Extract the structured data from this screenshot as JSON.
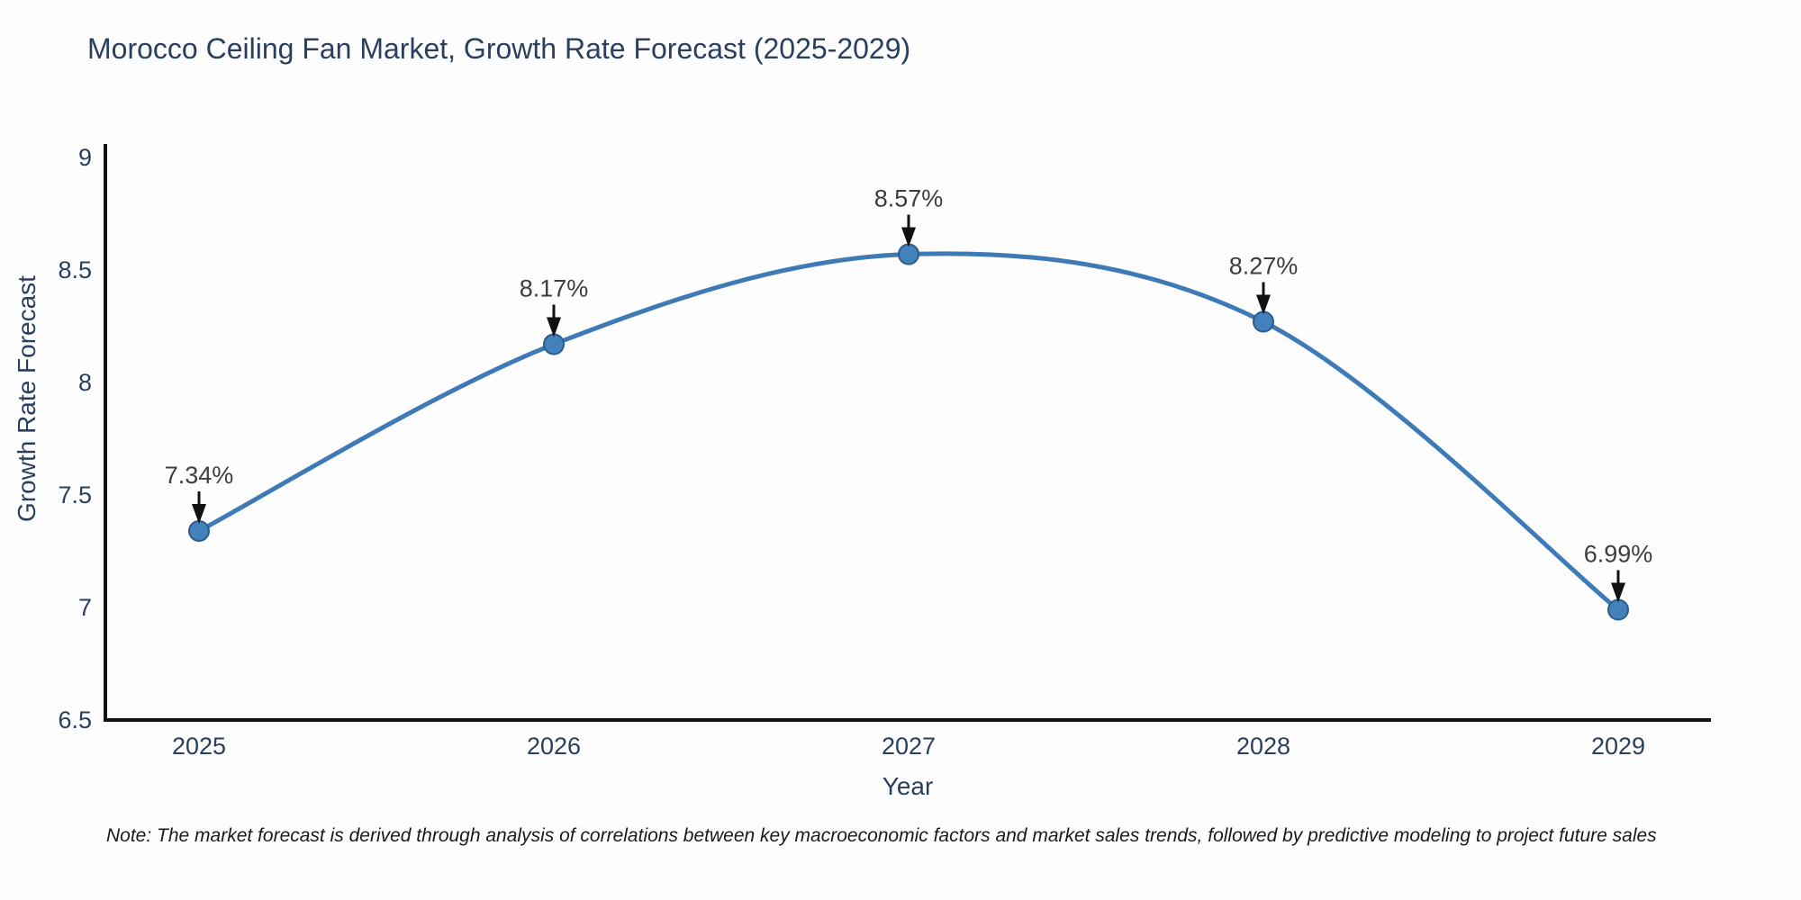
{
  "title": "Morocco Ceiling Fan Market, Growth Rate Forecast (2025-2029)",
  "note": "Note: The market forecast is derived through analysis of correlations between key macroeconomic factors and market sales trends, followed by predictive modeling to project future sales",
  "chart_data": {
    "type": "line",
    "title": "Morocco Ceiling Fan Market, Growth Rate Forecast (2025-2029)",
    "xlabel": "Year",
    "ylabel": "Growth Rate Forecast",
    "categories": [
      "2025",
      "2026",
      "2027",
      "2028",
      "2029"
    ],
    "values": [
      7.34,
      8.17,
      8.57,
      8.27,
      6.99
    ],
    "point_labels": [
      "7.34%",
      "8.17%",
      "8.57%",
      "8.27%",
      "6.99%"
    ],
    "yticks": [
      6.5,
      7,
      7.5,
      8,
      8.5,
      9
    ],
    "ylim": [
      6.5,
      9.06
    ],
    "line_shape": "spline",
    "grid": false,
    "legend": "none",
    "annotations": "value-label-with-down-arrow-at-each-point",
    "colors": {
      "line": "#3E7AB6",
      "marker_fill": "#4381BC",
      "marker_edge": "#2B5C8A",
      "axis_line": "#111111",
      "axis_text": "#2A3F5F",
      "annotation_text": "#3D3D3D",
      "arrow": "#111111",
      "title_text": "#2A3F5F",
      "background": "#FDFDFD"
    }
  }
}
